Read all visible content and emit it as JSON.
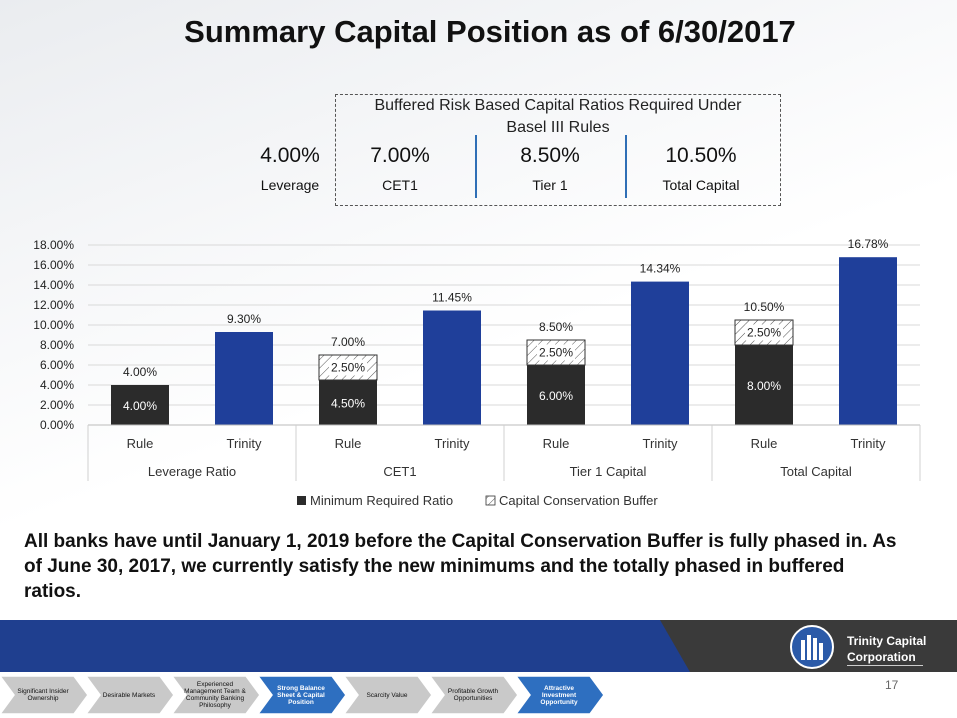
{
  "title": "Summary Capital Position as of 6/30/2017",
  "basel": {
    "heading_line1": "Buffered Risk Based Capital Ratios Required Under",
    "heading_line2": "Basel III Rules",
    "leverage": {
      "value": "4.00%",
      "label": "Leverage"
    },
    "cet1": {
      "value": "7.00%",
      "label": "CET1"
    },
    "tier1": {
      "value": "8.50%",
      "label": "Tier 1"
    },
    "total": {
      "value": "10.50%",
      "label": "Total Capital"
    }
  },
  "chart_data": {
    "type": "bar",
    "stacked": true,
    "ylim": [
      0,
      18
    ],
    "yticks": [
      "0.00%",
      "2.00%",
      "4.00%",
      "6.00%",
      "8.00%",
      "10.00%",
      "12.00%",
      "14.00%",
      "16.00%",
      "18.00%"
    ],
    "groups": [
      "Leverage Ratio",
      "CET1",
      "Tier 1 Capital",
      "Total Capital"
    ],
    "categories": [
      "Rule",
      "Trinity",
      "Rule",
      "Trinity",
      "Rule",
      "Trinity",
      "Rule",
      "Trinity"
    ],
    "series": [
      {
        "name": "Minimum Required Ratio",
        "values": [
          4.0,
          null,
          4.5,
          null,
          6.0,
          null,
          8.0,
          null
        ],
        "labels": [
          "4.00%",
          "",
          "4.50%",
          "",
          "6.00%",
          "",
          "8.00%",
          ""
        ]
      },
      {
        "name": "Capital Conservation Buffer",
        "values": [
          null,
          null,
          2.5,
          null,
          2.5,
          null,
          2.5,
          null
        ],
        "labels": [
          "",
          "",
          "2.50%",
          "",
          "2.50%",
          "",
          "2.50%",
          ""
        ]
      },
      {
        "name": "Trinity",
        "values": [
          null,
          9.3,
          null,
          11.45,
          null,
          14.34,
          null,
          16.78
        ],
        "labels": [
          "",
          "9.30%",
          "",
          "11.45%",
          "",
          "14.34%",
          "",
          "16.78%"
        ]
      }
    ],
    "totals": [
      "4.00%",
      "9.30%",
      "7.00%",
      "11.45%",
      "8.50%",
      "14.34%",
      "10.50%",
      "16.78%"
    ],
    "legend": [
      "Minimum Required Ratio",
      "Capital Conservation Buffer"
    ],
    "colors": {
      "minimum": "#2b2b2b",
      "trinity": "#1f3f9a",
      "buffer": "#ffffff",
      "grid": "#d9d9d9"
    }
  },
  "body_text": "All banks have until January 1, 2019 before the Capital Conservation Buffer is fully phased in.  As of June 30, 2017, we currently satisfy the new minimums and the totally phased in buffered ratios.",
  "logo": {
    "line1": "Trinity Capital",
    "line2": "Corporation"
  },
  "page_number": "17",
  "nav_steps": [
    {
      "label": "Significant Insider Ownership",
      "active": false
    },
    {
      "label": "Desirable Markets",
      "active": false
    },
    {
      "label": "Experienced Management Team & Community Banking Philosophy",
      "active": false
    },
    {
      "label": "Strong Balance Sheet & Capital Position",
      "active": true
    },
    {
      "label": "Scarcity Value",
      "active": false
    },
    {
      "label": "Profitable Growth Opportunities",
      "active": false
    },
    {
      "label": "Attractive Investment Opportunity",
      "active": true
    }
  ]
}
